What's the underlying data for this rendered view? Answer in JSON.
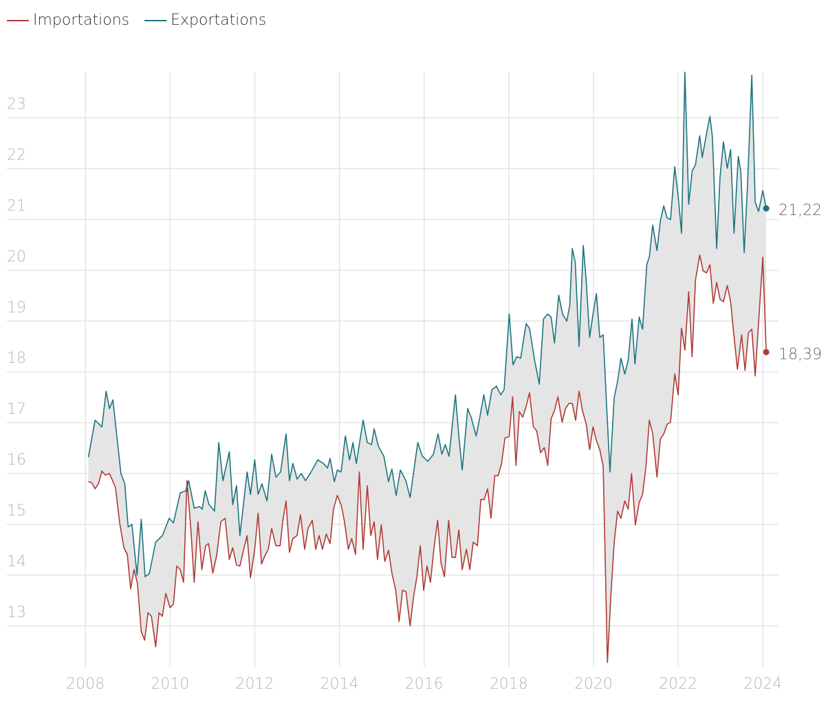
{
  "chart_data": {
    "type": "line",
    "legend": "top-left",
    "grid": true,
    "band_fill": "#e5e5e5",
    "xlim": [
      2006,
      2024.37
    ],
    "xticks": [
      2008,
      2010,
      2012,
      2014,
      2016,
      2018,
      2020,
      2022,
      2024
    ],
    "ylim": [
      12.2,
      23.9
    ],
    "yticks": [
      13,
      14,
      15,
      16,
      17,
      18,
      19,
      20,
      21,
      22,
      23
    ],
    "series": [
      {
        "name": "Importations",
        "color": "#b03a35",
        "end_label": "18,39",
        "x": [
          2008.07,
          2008.15,
          2008.23,
          2008.31,
          2008.39,
          2008.47,
          2008.57,
          2008.71,
          2008.81,
          2008.91,
          2008.99,
          2009.07,
          2009.15,
          2009.23,
          2009.32,
          2009.4,
          2009.48,
          2009.56,
          2009.66,
          2009.74,
          2009.82,
          2009.9,
          2010.0,
          2010.08,
          2010.16,
          2010.24,
          2010.32,
          2010.4,
          2010.49,
          2010.57,
          2010.66,
          2010.75,
          2010.84,
          2010.91,
          2011.01,
          2011.1,
          2011.2,
          2011.3,
          2011.4,
          2011.48,
          2011.57,
          2011.65,
          2011.74,
          2011.82,
          2011.9,
          2012.0,
          2012.08,
          2012.16,
          2012.24,
          2012.32,
          2012.4,
          2012.5,
          2012.6,
          2012.66,
          2012.74,
          2012.82,
          2012.9,
          2013.0,
          2013.08,
          2013.18,
          2013.26,
          2013.36,
          2013.44,
          2013.52,
          2013.6,
          2013.69,
          2013.78,
          2013.86,
          2013.95,
          2014.04,
          2014.12,
          2014.21,
          2014.29,
          2014.38,
          2014.47,
          2014.56,
          2014.66,
          2014.74,
          2014.82,
          2014.9,
          2014.99,
          2015.07,
          2015.16,
          2015.24,
          2015.33,
          2015.41,
          2015.49,
          2015.57,
          2015.67,
          2015.75,
          2015.83,
          2015.91,
          2015.99,
          2016.07,
          2016.15,
          2016.24,
          2016.32,
          2016.4,
          2016.48,
          2016.58,
          2016.66,
          2016.74,
          2016.82,
          2016.9,
          2017.0,
          2017.08,
          2017.16,
          2017.26,
          2017.34,
          2017.42,
          2017.5,
          2017.58,
          2017.67,
          2017.75,
          2017.83,
          2017.91,
          2018.01,
          2018.09,
          2018.17,
          2018.25,
          2018.33,
          2018.41,
          2018.49,
          2018.58,
          2018.66,
          2018.75,
          2018.84,
          2018.92,
          2019.0,
          2019.08,
          2019.16,
          2019.26,
          2019.34,
          2019.42,
          2019.5,
          2019.58,
          2019.66,
          2019.74,
          2019.83,
          2019.91,
          2019.99,
          2020.07,
          2020.15,
          2020.23,
          2020.33,
          2020.41,
          2020.49,
          2020.57,
          2020.65,
          2020.74,
          2020.82,
          2020.9,
          2020.99,
          2021.08,
          2021.16,
          2021.24,
          2021.32,
          2021.4,
          2021.5,
          2021.58,
          2021.66,
          2021.74,
          2021.82,
          2021.92,
          2022.0,
          2022.08,
          2022.16,
          2022.25,
          2022.33,
          2022.41,
          2022.51,
          2022.59,
          2022.67,
          2022.75,
          2022.83,
          2022.91,
          2022.99,
          2023.07,
          2023.16,
          2023.24,
          2023.32,
          2023.4,
          2023.5,
          2023.58,
          2023.66,
          2023.74,
          2023.82,
          2023.9,
          2024.0,
          2024.08
        ],
        "values": [
          15.84,
          15.82,
          15.7,
          15.8,
          16.05,
          15.97,
          16.0,
          15.73,
          15.03,
          14.54,
          14.41,
          13.73,
          14.11,
          13.84,
          12.89,
          12.72,
          13.26,
          13.19,
          12.59,
          13.26,
          13.19,
          13.64,
          13.36,
          13.43,
          14.18,
          14.11,
          13.86,
          15.86,
          14.92,
          13.86,
          15.05,
          14.11,
          14.58,
          14.62,
          14.04,
          14.38,
          15.05,
          15.12,
          14.31,
          14.54,
          14.2,
          14.18,
          14.51,
          14.78,
          13.95,
          14.51,
          15.22,
          14.22,
          14.38,
          14.51,
          14.92,
          14.58,
          14.58,
          15.05,
          15.46,
          14.45,
          14.72,
          14.78,
          15.19,
          14.51,
          14.92,
          15.08,
          14.51,
          14.78,
          14.51,
          14.81,
          14.62,
          15.3,
          15.57,
          15.39,
          15.05,
          14.51,
          14.72,
          14.41,
          16.03,
          14.51,
          15.76,
          14.78,
          15.05,
          14.31,
          14.99,
          14.27,
          14.49,
          14.04,
          13.7,
          13.09,
          13.7,
          13.68,
          13.0,
          13.57,
          13.97,
          14.58,
          13.7,
          14.18,
          13.86,
          14.58,
          15.08,
          14.24,
          13.97,
          15.08,
          14.35,
          14.35,
          14.89,
          14.11,
          14.51,
          14.11,
          14.65,
          14.58,
          15.49,
          15.49,
          15.7,
          15.12,
          15.96,
          15.96,
          16.2,
          16.7,
          16.73,
          17.51,
          16.16,
          17.22,
          17.11,
          17.32,
          17.59,
          16.92,
          16.84,
          16.41,
          16.51,
          16.16,
          17.08,
          17.24,
          17.51,
          17.01,
          17.28,
          17.38,
          17.38,
          17.05,
          17.62,
          17.24,
          16.97,
          16.47,
          16.92,
          16.65,
          16.47,
          16.14,
          12.28,
          13.57,
          14.65,
          15.26,
          15.12,
          15.46,
          15.3,
          16.0,
          14.99,
          15.43,
          15.59,
          16.14,
          17.05,
          16.78,
          15.93,
          16.68,
          16.78,
          16.97,
          17.01,
          17.96,
          17.55,
          18.86,
          18.43,
          19.58,
          18.3,
          19.81,
          20.3,
          19.99,
          19.95,
          20.11,
          19.35,
          19.76,
          19.43,
          19.38,
          19.7,
          19.38,
          18.7,
          18.05,
          18.73,
          18.03,
          18.77,
          18.84,
          17.92,
          18.97,
          20.26,
          18.39
        ]
      },
      {
        "name": "Exportations",
        "color": "#1c7380",
        "end_label": "21,22",
        "x": [
          2008.07,
          2008.23,
          2008.39,
          2008.49,
          2008.57,
          2008.65,
          2008.84,
          2008.93,
          2009.01,
          2009.1,
          2009.22,
          2009.32,
          2009.41,
          2009.51,
          2009.66,
          2009.82,
          2009.98,
          2010.08,
          2010.24,
          2010.37,
          2010.44,
          2010.57,
          2010.7,
          2010.76,
          2010.83,
          2010.92,
          2011.05,
          2011.15,
          2011.25,
          2011.4,
          2011.48,
          2011.57,
          2011.65,
          2011.82,
          2011.9,
          2012.0,
          2012.08,
          2012.17,
          2012.29,
          2012.4,
          2012.5,
          2012.61,
          2012.74,
          2012.82,
          2012.9,
          2013.0,
          2013.1,
          2013.2,
          2013.33,
          2013.49,
          2013.62,
          2013.72,
          2013.78,
          2013.88,
          2013.95,
          2014.04,
          2014.14,
          2014.24,
          2014.32,
          2014.4,
          2014.56,
          2014.66,
          2014.76,
          2014.82,
          2014.92,
          2015.05,
          2015.16,
          2015.24,
          2015.34,
          2015.44,
          2015.57,
          2015.67,
          2015.76,
          2015.85,
          2015.96,
          2016.09,
          2016.22,
          2016.33,
          2016.42,
          2016.5,
          2016.59,
          2016.74,
          2016.82,
          2016.9,
          2017.03,
          2017.11,
          2017.23,
          2017.31,
          2017.41,
          2017.5,
          2017.6,
          2017.71,
          2017.81,
          2017.89,
          2018.01,
          2018.1,
          2018.19,
          2018.28,
          2018.41,
          2018.49,
          2018.61,
          2018.72,
          2018.82,
          2018.92,
          2019.0,
          2019.08,
          2019.18,
          2019.27,
          2019.37,
          2019.44,
          2019.5,
          2019.57,
          2019.66,
          2019.76,
          2019.83,
          2019.91,
          2019.99,
          2020.07,
          2020.15,
          2020.23,
          2020.31,
          2020.39,
          2020.49,
          2020.57,
          2020.65,
          2020.74,
          2020.82,
          2020.91,
          2020.98,
          2021.08,
          2021.16,
          2021.26,
          2021.32,
          2021.4,
          2021.5,
          2021.58,
          2021.66,
          2021.74,
          2021.82,
          2021.92,
          2022.0,
          2022.08,
          2022.16,
          2022.25,
          2022.33,
          2022.41,
          2022.51,
          2022.57,
          2022.67,
          2022.75,
          2022.81,
          2022.91,
          2022.99,
          2023.07,
          2023.16,
          2023.24,
          2023.32,
          2023.42,
          2023.48,
          2023.56,
          2023.64,
          2023.74,
          2023.82,
          2023.9,
          2024.0,
          2024.08
        ],
        "values": [
          16.32,
          17.05,
          16.92,
          17.62,
          17.28,
          17.45,
          16.0,
          15.8,
          14.95,
          15.0,
          14.0,
          15.1,
          13.97,
          14.03,
          14.65,
          14.78,
          15.12,
          15.03,
          15.62,
          15.66,
          15.86,
          15.32,
          15.35,
          15.3,
          15.66,
          15.39,
          15.26,
          16.61,
          15.86,
          16.43,
          15.39,
          15.76,
          14.78,
          16.03,
          15.59,
          16.27,
          15.59,
          15.8,
          15.46,
          16.38,
          15.93,
          16.03,
          16.78,
          15.86,
          16.2,
          15.89,
          16.0,
          15.86,
          16.03,
          16.27,
          16.2,
          16.11,
          16.3,
          15.84,
          16.07,
          16.03,
          16.74,
          16.27,
          16.61,
          16.2,
          17.05,
          16.61,
          16.57,
          16.88,
          16.54,
          16.34,
          15.84,
          16.09,
          15.57,
          16.07,
          15.86,
          15.53,
          16.07,
          16.61,
          16.34,
          16.24,
          16.38,
          16.78,
          16.38,
          16.57,
          16.34,
          17.55,
          16.74,
          16.07,
          17.28,
          17.11,
          16.74,
          17.08,
          17.55,
          17.15,
          17.65,
          17.72,
          17.55,
          17.65,
          19.14,
          18.14,
          18.3,
          18.27,
          18.95,
          18.86,
          18.23,
          17.76,
          19.04,
          19.14,
          19.08,
          18.57,
          19.51,
          19.14,
          19.0,
          19.31,
          20.43,
          20.16,
          18.5,
          20.49,
          19.78,
          18.68,
          19.14,
          19.54,
          18.68,
          18.73,
          17.35,
          16.03,
          17.49,
          17.82,
          18.27,
          17.96,
          18.23,
          19.04,
          18.16,
          19.08,
          18.84,
          20.12,
          20.26,
          20.89,
          20.39,
          20.97,
          21.27,
          21.03,
          21.0,
          22.04,
          21.47,
          20.73,
          23.9,
          21.3,
          21.95,
          22.08,
          22.65,
          22.22,
          22.69,
          23.03,
          22.62,
          20.43,
          21.84,
          22.53,
          22.01,
          22.38,
          20.73,
          22.24,
          21.95,
          20.35,
          21.7,
          23.84,
          21.34,
          21.16,
          21.57,
          21.22
        ]
      }
    ]
  }
}
